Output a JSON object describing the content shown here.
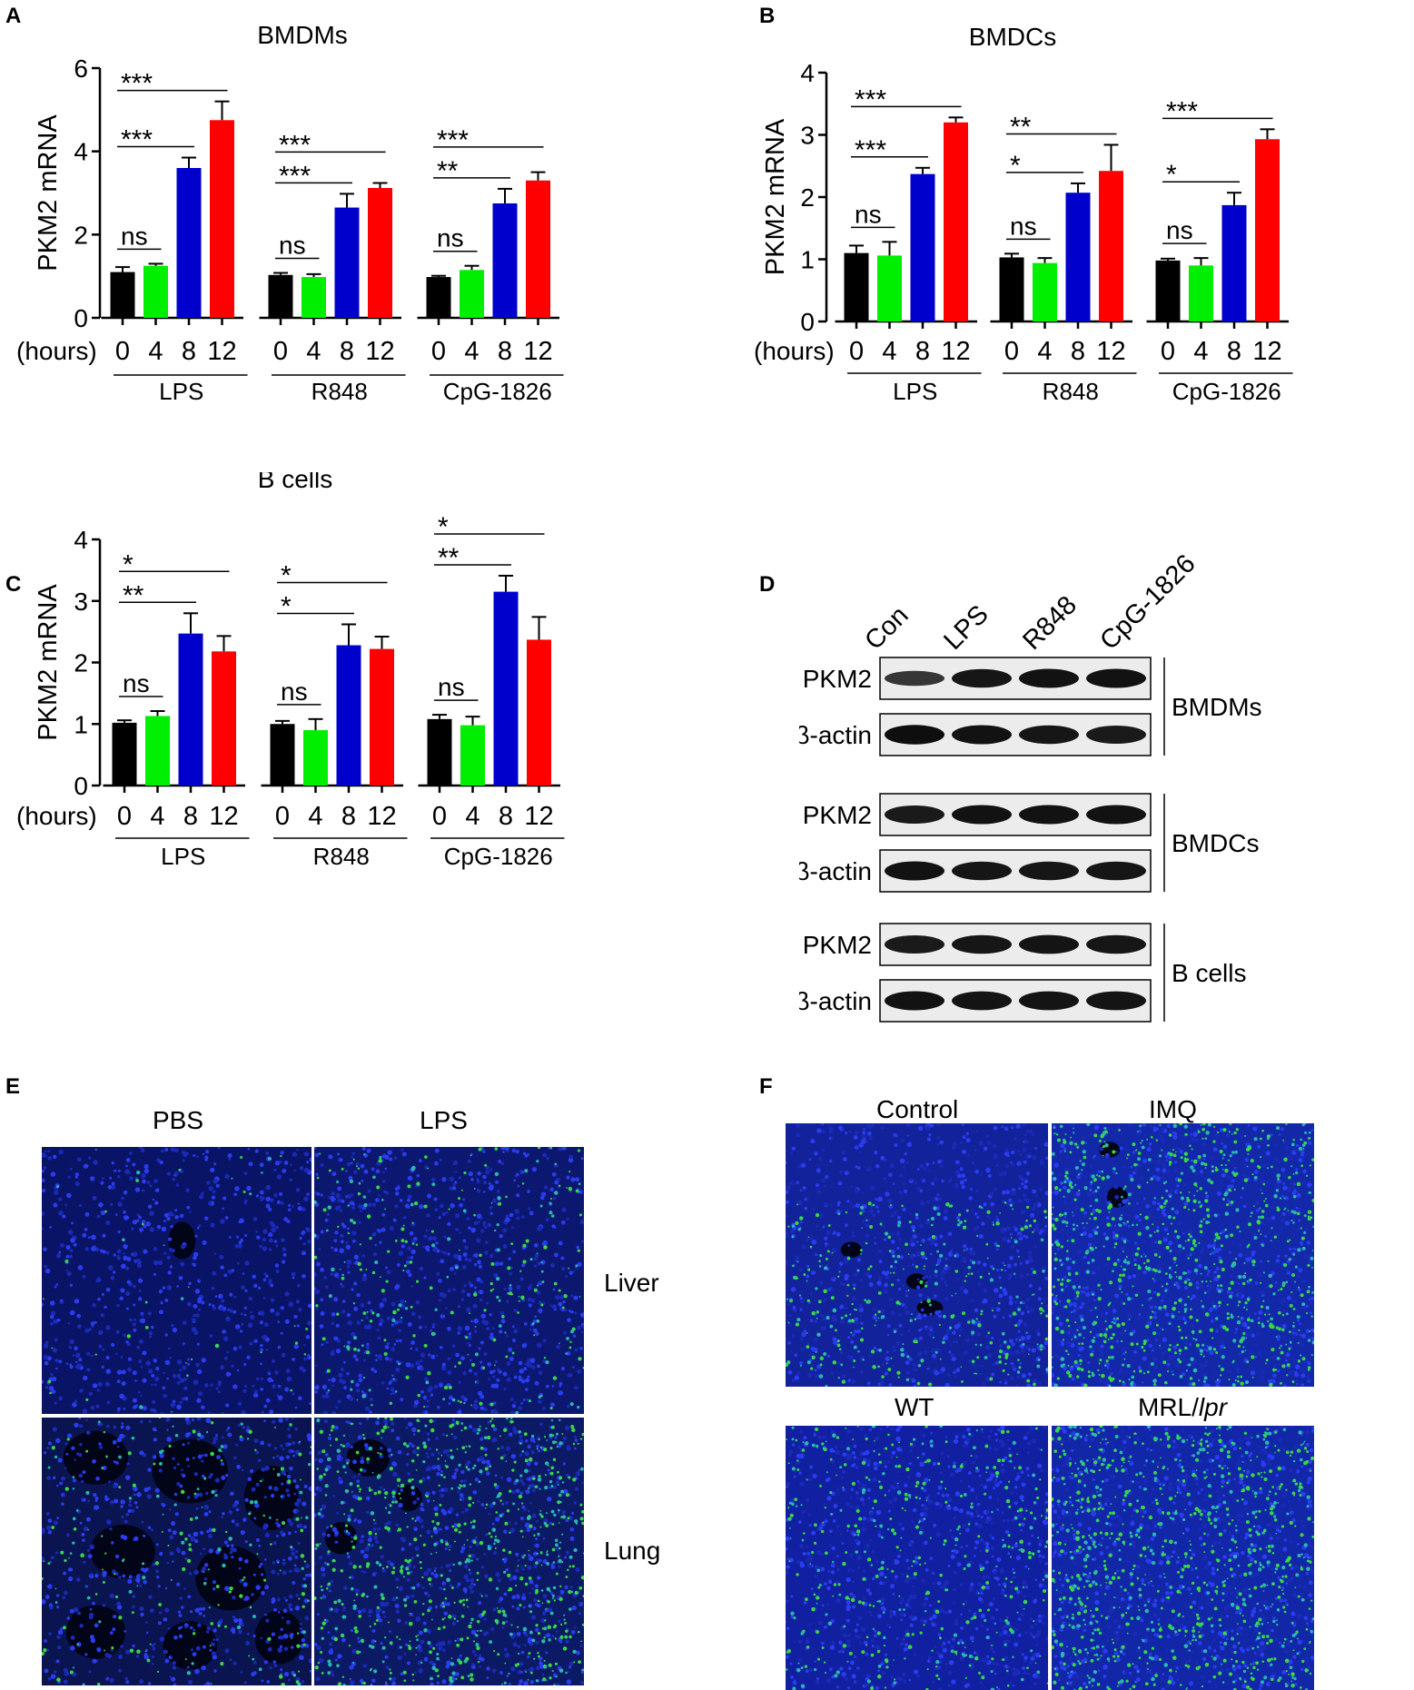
{
  "chart_data": [
    {
      "panel": "A",
      "type": "bar",
      "title": "BMDMs",
      "ylabel": "PKM2 mRNA",
      "ylim": [
        0,
        6
      ],
      "yticks": [
        0,
        2,
        4,
        6
      ],
      "xprefix": "(hours)",
      "groups": [
        {
          "name": "LPS",
          "hours": [
            "0",
            "4",
            "8",
            "12"
          ],
          "values": [
            1.1,
            1.25,
            3.6,
            4.75
          ],
          "errors": [
            0.12,
            0.05,
            0.25,
            0.45
          ],
          "sig": [
            {
              "label": "ns",
              "from": 0,
              "to": 1
            },
            {
              "label": "***",
              "from": 0,
              "to": 2
            },
            {
              "label": "***",
              "from": 0,
              "to": 3
            }
          ]
        },
        {
          "name": "R848",
          "hours": [
            "0",
            "4",
            "8",
            "12"
          ],
          "values": [
            1.03,
            0.98,
            2.65,
            3.12
          ],
          "errors": [
            0.05,
            0.07,
            0.33,
            0.12
          ],
          "sig": [
            {
              "label": "ns",
              "from": 0,
              "to": 1
            },
            {
              "label": "***",
              "from": 0,
              "to": 2
            },
            {
              "label": "***",
              "from": 0,
              "to": 3
            }
          ]
        },
        {
          "name": "CpG-1826",
          "hours": [
            "0",
            "4",
            "8",
            "12"
          ],
          "values": [
            0.98,
            1.15,
            2.75,
            3.3
          ],
          "errors": [
            0.03,
            0.1,
            0.35,
            0.2
          ],
          "sig": [
            {
              "label": "ns",
              "from": 0,
              "to": 1
            },
            {
              "label": "**",
              "from": 0,
              "to": 2
            },
            {
              "label": "***",
              "from": 0,
              "to": 3
            }
          ]
        }
      ]
    },
    {
      "panel": "B",
      "type": "bar",
      "title": "BMDCs",
      "ylabel": "PKM2 mRNA",
      "ylim": [
        0,
        4
      ],
      "yticks": [
        0,
        1,
        2,
        3,
        4
      ],
      "xprefix": "(hours)",
      "groups": [
        {
          "name": "LPS",
          "hours": [
            "0",
            "4",
            "8",
            "12"
          ],
          "values": [
            1.1,
            1.06,
            2.37,
            3.2
          ],
          "errors": [
            0.12,
            0.22,
            0.1,
            0.08
          ],
          "sig": [
            {
              "label": "ns",
              "from": 0,
              "to": 1
            },
            {
              "label": "***",
              "from": 0,
              "to": 2
            },
            {
              "label": "***",
              "from": 0,
              "to": 3
            }
          ]
        },
        {
          "name": "R848",
          "hours": [
            "0",
            "4",
            "8",
            "12"
          ],
          "values": [
            1.03,
            0.94,
            2.07,
            2.42
          ],
          "errors": [
            0.06,
            0.08,
            0.15,
            0.42
          ],
          "sig": [
            {
              "label": "ns",
              "from": 0,
              "to": 1
            },
            {
              "label": "*",
              "from": 0,
              "to": 2
            },
            {
              "label": "**",
              "from": 0,
              "to": 3
            }
          ]
        },
        {
          "name": "CpG-1826",
          "hours": [
            "0",
            "4",
            "8",
            "12"
          ],
          "values": [
            0.98,
            0.9,
            1.87,
            2.93
          ],
          "errors": [
            0.03,
            0.12,
            0.2,
            0.16
          ],
          "sig": [
            {
              "label": "ns",
              "from": 0,
              "to": 1
            },
            {
              "label": "*",
              "from": 0,
              "to": 2
            },
            {
              "label": "***",
              "from": 0,
              "to": 3
            }
          ]
        }
      ]
    },
    {
      "panel": "C",
      "type": "bar",
      "title": "B cells",
      "ylabel": "PKM2 mRNA",
      "ylim": [
        0,
        4
      ],
      "yticks": [
        0,
        1,
        2,
        3,
        4
      ],
      "xprefix": "(hours)",
      "groups": [
        {
          "name": "LPS",
          "hours": [
            "0",
            "4",
            "8",
            "12"
          ],
          "values": [
            1.02,
            1.13,
            2.47,
            2.18
          ],
          "errors": [
            0.04,
            0.08,
            0.33,
            0.25
          ],
          "sig": [
            {
              "label": "ns",
              "from": 0,
              "to": 1
            },
            {
              "label": "**",
              "from": 0,
              "to": 2
            },
            {
              "label": "*",
              "from": 0,
              "to": 3
            }
          ]
        },
        {
          "name": "R848",
          "hours": [
            "0",
            "4",
            "8",
            "12"
          ],
          "values": [
            1.0,
            0.9,
            2.28,
            2.22
          ],
          "errors": [
            0.05,
            0.18,
            0.34,
            0.2
          ],
          "sig": [
            {
              "label": "ns",
              "from": 0,
              "to": 1
            },
            {
              "label": "*",
              "from": 0,
              "to": 2
            },
            {
              "label": "*",
              "from": 0,
              "to": 3
            }
          ]
        },
        {
          "name": "CpG-1826",
          "hours": [
            "0",
            "4",
            "8",
            "12"
          ],
          "values": [
            1.08,
            0.98,
            3.15,
            2.37
          ],
          "errors": [
            0.07,
            0.14,
            0.26,
            0.37
          ],
          "sig": [
            {
              "label": "ns",
              "from": 0,
              "to": 1
            },
            {
              "label": "**",
              "from": 0,
              "to": 2
            },
            {
              "label": "*",
              "from": 0,
              "to": 3
            }
          ]
        }
      ]
    }
  ],
  "colors": {
    "h0": "#000000",
    "h4": "#00ee00",
    "h8": "#0000cc",
    "h12": "#ff0000"
  },
  "panelD": {
    "label": "D",
    "lanes": [
      "Con",
      "LPS",
      "R848",
      "CpG-1826"
    ],
    "blocks": [
      {
        "cell": "BMDMs",
        "rows": [
          {
            "protein": "PKM2",
            "intensity": [
              0.45,
              0.85,
              0.9,
              0.9
            ]
          },
          {
            "protein": "β-actin",
            "intensity": [
              0.95,
              0.9,
              0.85,
              0.8
            ]
          }
        ]
      },
      {
        "cell": "BMDCs",
        "rows": [
          {
            "protein": "PKM2",
            "intensity": [
              0.8,
              0.9,
              0.9,
              0.9
            ]
          },
          {
            "protein": "β-actin",
            "intensity": [
              0.9,
              0.85,
              0.85,
              0.85
            ]
          }
        ]
      },
      {
        "cell": "B cells",
        "rows": [
          {
            "protein": "PKM2",
            "intensity": [
              0.8,
              0.85,
              0.88,
              0.85
            ]
          },
          {
            "protein": "β-actin",
            "intensity": [
              0.9,
              0.88,
              0.88,
              0.88
            ]
          }
        ]
      }
    ]
  },
  "panelE": {
    "label": "E",
    "columns": [
      "PBS",
      "LPS"
    ],
    "rows": [
      "Liver",
      "Lung"
    ]
  },
  "panelF": {
    "label": "F",
    "top_labels": [
      "Control",
      "IMQ"
    ],
    "bottom_labels": [
      "WT",
      "MRL/"
    ],
    "bottom_italic": "lpr"
  }
}
